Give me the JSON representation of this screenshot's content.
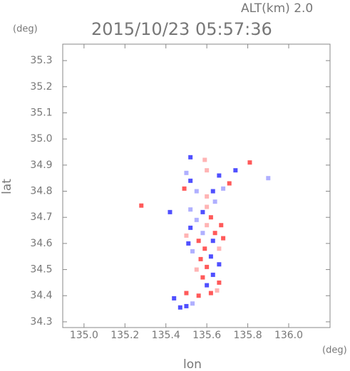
{
  "chart_data": {
    "type": "scatter",
    "annotation": "ALT(km) 2.0",
    "title": "2015/10/23 05:57:36",
    "y_unit": "(deg)",
    "x_unit": "(deg)",
    "x_label": "lon",
    "y_label": "lat",
    "xlim": [
      134.896,
      136.202
    ],
    "ylim": [
      34.278,
      35.363
    ],
    "xticks": [
      {
        "value": 135,
        "label": "135.0"
      },
      135.2,
      135.4,
      135.6,
      135.8,
      {
        "value": 136,
        "label": "136.0"
      }
    ],
    "yticks": [
      35.3,
      35.2,
      35.1,
      {
        "value": 35,
        "label": "35.0"
      },
      34.9,
      34.8,
      34.7,
      34.6,
      34.5,
      34.4,
      34.3
    ],
    "x": [
      135.5,
      135.47,
      135.53,
      135.56,
      135.5,
      135.62,
      135.65,
      135.6,
      135.66,
      135.58,
      135.63,
      135.55,
      135.6,
      135.66,
      135.57,
      135.62,
      135.53,
      135.59,
      135.66,
      135.51,
      135.56,
      135.63,
      135.68,
      135.5,
      135.58,
      135.64,
      135.52,
      135.6,
      135.67,
      135.55,
      135.62,
      135.58,
      135.52,
      135.6,
      135.5,
      135.52,
      135.49,
      135.55,
      135.6,
      135.63,
      135.68,
      135.66,
      135.6,
      135.59,
      135.71,
      135.64,
      135.28,
      135.81,
      135.74,
      135.9,
      135.42,
      135.44,
      135.52
    ],
    "values": [
      34.36,
      34.355,
      34.37,
      34.4,
      34.41,
      34.41,
      34.42,
      34.44,
      34.45,
      34.47,
      34.48,
      34.5,
      34.51,
      34.52,
      34.54,
      34.55,
      34.57,
      34.58,
      34.58,
      34.6,
      34.61,
      34.61,
      34.62,
      34.63,
      34.64,
      34.64,
      34.66,
      34.67,
      34.67,
      34.69,
      34.7,
      34.72,
      34.73,
      34.74,
      34.87,
      34.84,
      34.81,
      34.8,
      34.78,
      34.8,
      34.81,
      34.86,
      34.88,
      34.92,
      34.83,
      34.76,
      34.745,
      34.91,
      34.88,
      34.85,
      34.72,
      34.39,
      34.93
    ],
    "colors": [
      "#5050ff",
      "#5050ff",
      "#b0b0ff",
      "#ff5a5a",
      "#ff5a5a",
      "#ff5a5a",
      "#ffb4b4",
      "#5050ff",
      "#ff5a5a",
      "#ff5a5a",
      "#5050ff",
      "#ffb4b4",
      "#ff5a5a",
      "#5050ff",
      "#ff5a5a",
      "#5050ff",
      "#b0b0ff",
      "#ff5a5a",
      "#ffb4b4",
      "#5050ff",
      "#ff5a5a",
      "#5050ff",
      "#ff5a5a",
      "#ffb4b4",
      "#b0b0ff",
      "#ff5a5a",
      "#5050ff",
      "#ffb4b4",
      "#ff5a5a",
      "#b0b0ff",
      "#ff5a5a",
      "#5050ff",
      "#b0b0ff",
      "#ffb4b4",
      "#b0b0ff",
      "#5050ff",
      "#ff5a5a",
      "#b0b0ff",
      "#ffb4b4",
      "#5050ff",
      "#b0b0ff",
      "#5050ff",
      "#ffb4b4",
      "#ffb4b4",
      "#ff5a5a",
      "#b0b0ff",
      "#ff5a5a",
      "#ff5a5a",
      "#5050ff",
      "#b0b0ff",
      "#5050ff",
      "#5050ff",
      "#5050ff"
    ]
  }
}
